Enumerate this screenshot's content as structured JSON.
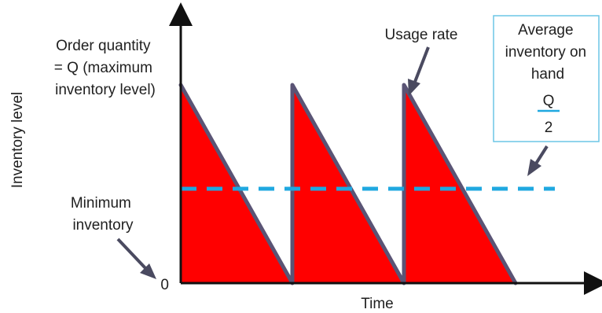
{
  "chart_data": {
    "type": "area",
    "x_axis_label": "Time",
    "y_axis_label": "Inventory level",
    "y_tick_zero": "0",
    "series": [
      {
        "x": [
          0,
          1,
          1,
          2,
          2,
          3
        ],
        "y": [
          1,
          0,
          1,
          0,
          1,
          0
        ]
      }
    ],
    "average_line_value": 0.5
  },
  "annotations": {
    "order_quantity": [
      "Order quantity",
      "= Q (maximum",
      "inventory level)"
    ],
    "usage_rate": "Usage rate",
    "average_inventory": [
      "Average",
      "inventory on",
      "hand"
    ],
    "fraction_numerator": "Q",
    "fraction_denominator": "2",
    "minimum_inventory": [
      "Minimum",
      "inventory"
    ]
  },
  "colors": {
    "fill": "#ff0000",
    "outline": "#5a5475",
    "average_line": "#1fa8e0",
    "box_border": "#6cc6e6",
    "axis": "#111111",
    "arrow": "#4a4a60"
  }
}
